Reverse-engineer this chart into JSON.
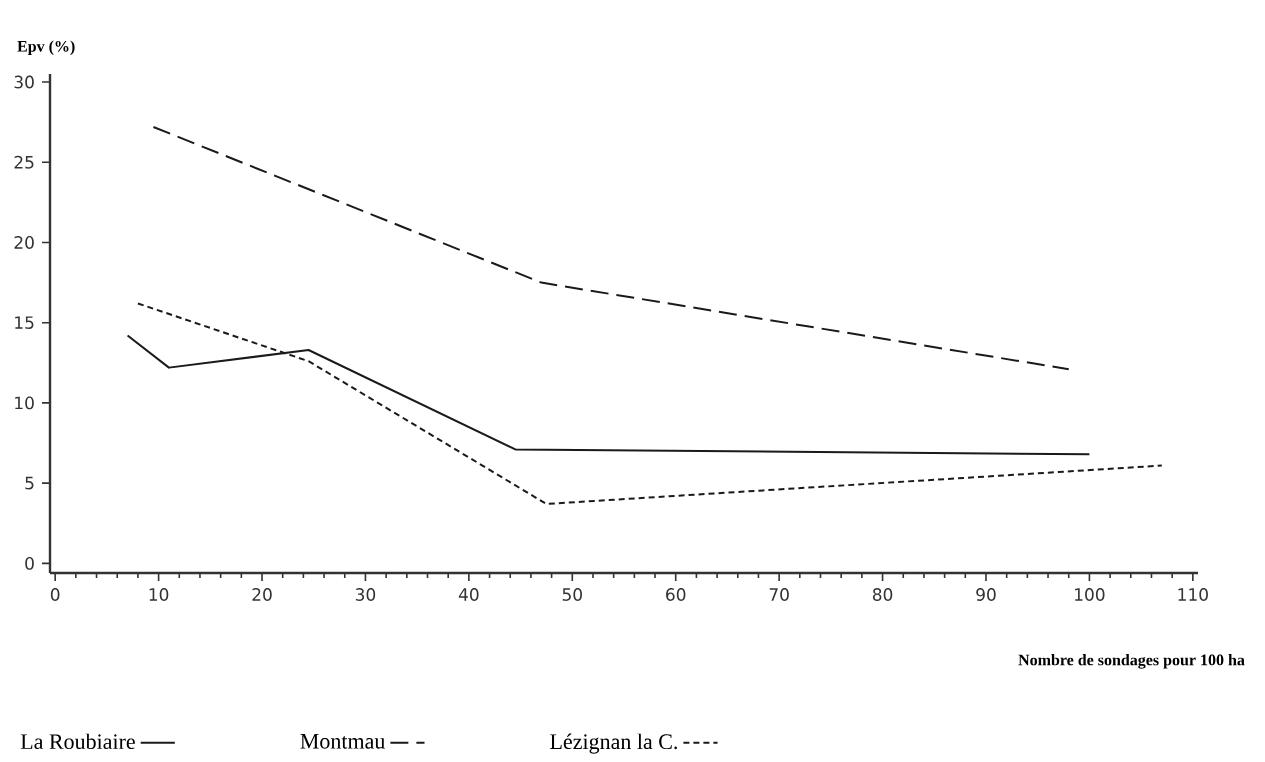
{
  "chart_data": {
    "type": "line",
    "ylabel": "Epv (%)",
    "xlabel": "Nombre de sondages pour 100 ha",
    "xlim": [
      -0.5,
      110.5
    ],
    "ylim": [
      -0.6,
      30.5
    ],
    "xticks": [
      0,
      10,
      20,
      30,
      40,
      50,
      60,
      70,
      80,
      90,
      100,
      110
    ],
    "yticks": [
      0,
      5,
      10,
      15,
      20,
      25,
      30
    ],
    "grid": false,
    "legend": "bottom",
    "marker": "none",
    "series": [
      {
        "name": "La Roubiaire",
        "color": "#1a1a1a",
        "line_style": "solid",
        "x": [
          7,
          11,
          24.5,
          44.5,
          100
        ],
        "values": [
          14.2,
          12.2,
          13.3,
          7.1,
          6.8
        ]
      },
      {
        "name": "Montmau",
        "color": "#1a1a1a",
        "line_style": "dashed",
        "x": [
          9.5,
          47,
          98
        ],
        "values": [
          27.2,
          17.5,
          12.1
        ]
      },
      {
        "name": "Lézignan la C.",
        "color": "#1a1a1a",
        "line_style": "dotted",
        "x": [
          8,
          24.5,
          47.5,
          107
        ],
        "values": [
          16.2,
          12.6,
          3.7,
          6.1
        ]
      }
    ]
  }
}
